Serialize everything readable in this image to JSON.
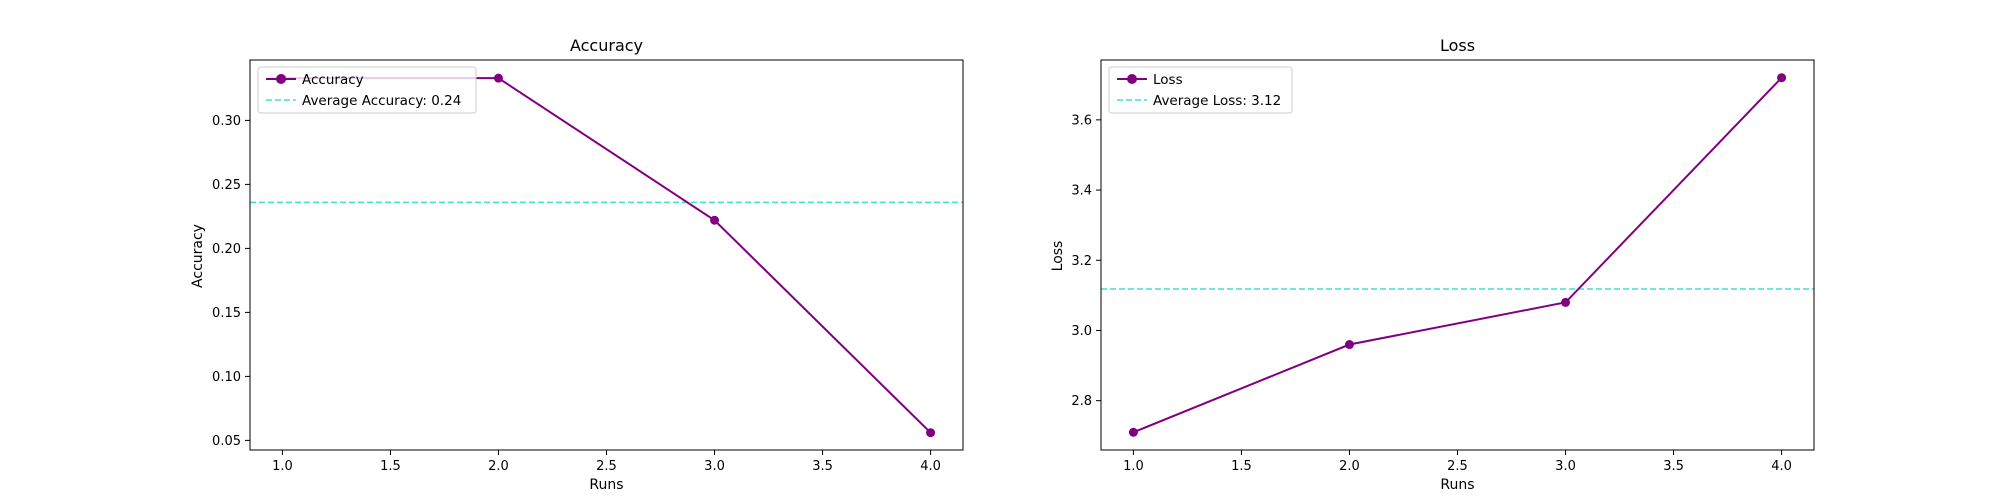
{
  "figure": {
    "colors": {
      "series": "#800080",
      "average": "#40E0D0",
      "axes": "#000000",
      "legend_border": "#cccccc"
    }
  },
  "chart_data": [
    {
      "type": "line",
      "title": "Accuracy",
      "xlabel": "Runs",
      "ylabel": "Accuracy",
      "x": [
        1,
        2,
        3,
        4
      ],
      "series": [
        {
          "name": "Accuracy",
          "values": [
            0.333,
            0.333,
            0.222,
            0.056
          ],
          "color": "#800080",
          "marker": "circle"
        }
      ],
      "reference_lines": [
        {
          "name": "Average Accuracy: 0.24",
          "value": 0.236,
          "style": "dashed",
          "color": "#40E0D0"
        }
      ],
      "xlim": [
        0.85,
        4.15
      ],
      "ylim": [
        0.0425,
        0.3472
      ],
      "xticks": [
        1.0,
        1.5,
        2.0,
        2.5,
        3.0,
        3.5,
        4.0
      ],
      "xtick_labels": [
        "1.0",
        "1.5",
        "2.0",
        "2.5",
        "3.0",
        "3.5",
        "4.0"
      ],
      "yticks": [
        0.05,
        0.1,
        0.15,
        0.2,
        0.25,
        0.3
      ],
      "ytick_labels": [
        "0.05",
        "0.10",
        "0.15",
        "0.20",
        "0.25",
        "0.30"
      ],
      "grid": false,
      "legend_position": "top-left"
    },
    {
      "type": "line",
      "title": "Loss",
      "xlabel": "Runs",
      "ylabel": "Loss",
      "x": [
        1,
        2,
        3,
        4
      ],
      "series": [
        {
          "name": "Loss",
          "values": [
            2.71,
            2.96,
            3.08,
            3.72
          ],
          "color": "#800080",
          "marker": "circle"
        }
      ],
      "reference_lines": [
        {
          "name": "Average Loss: 3.12",
          "value": 3.118,
          "style": "dashed",
          "color": "#40E0D0"
        }
      ],
      "xlim": [
        0.85,
        4.15
      ],
      "ylim": [
        2.6595,
        3.7705
      ],
      "xticks": [
        1.0,
        1.5,
        2.0,
        2.5,
        3.0,
        3.5,
        4.0
      ],
      "xtick_labels": [
        "1.0",
        "1.5",
        "2.0",
        "2.5",
        "3.0",
        "3.5",
        "4.0"
      ],
      "yticks": [
        2.8,
        3.0,
        3.2,
        3.4,
        3.6
      ],
      "ytick_labels": [
        "2.8",
        "3.0",
        "3.2",
        "3.4",
        "3.6"
      ],
      "grid": false,
      "legend_position": "top-left"
    }
  ]
}
